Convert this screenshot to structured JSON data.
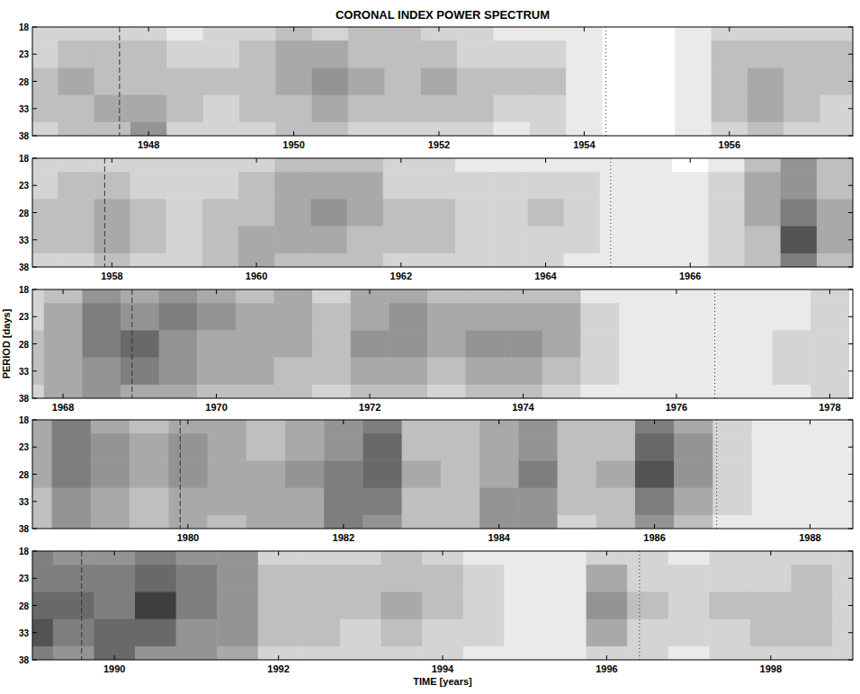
{
  "chart_data": [
    {
      "type": "heatmap",
      "title": "CORONAL INDEX POWER SPECTRUM",
      "xlim": [
        1946.4,
        1957.7
      ],
      "xticks": [
        1948,
        1950,
        1952,
        1954,
        1956
      ],
      "ylim": [
        38,
        18
      ],
      "yticks": [
        18,
        23,
        28,
        33,
        38
      ],
      "zlim": [
        0,
        10
      ],
      "dashed_lines": [
        1947.6
      ],
      "dotted_lines": [
        1954.3
      ],
      "periods": [
        18,
        23,
        28,
        33,
        38
      ],
      "times": [
        1946.5,
        1947,
        1947.5,
        1948,
        1948.5,
        1949,
        1949.5,
        1950,
        1950.5,
        1951,
        1951.5,
        1952,
        1952.5,
        1953,
        1953.5,
        1954,
        1954.5,
        1955,
        1955.5,
        1956,
        1956.5,
        1957,
        1957.5
      ],
      "cells": [
        [
          2,
          2,
          2,
          2,
          1,
          2,
          2,
          3,
          2,
          3,
          3,
          2,
          2,
          1,
          1,
          1,
          0,
          0,
          1,
          2,
          2,
          2,
          2
        ],
        [
          2,
          3,
          3,
          3,
          2,
          2,
          3,
          4,
          4,
          3,
          3,
          3,
          2,
          2,
          2,
          1,
          0,
          0,
          1,
          3,
          3,
          3,
          3
        ],
        [
          3,
          4,
          3,
          3,
          3,
          3,
          3,
          4,
          5,
          4,
          3,
          4,
          3,
          3,
          3,
          1,
          0,
          0,
          1,
          3,
          4,
          3,
          3
        ],
        [
          3,
          3,
          4,
          4,
          3,
          2,
          3,
          3,
          4,
          3,
          3,
          3,
          3,
          2,
          2,
          1,
          0,
          0,
          1,
          3,
          4,
          3,
          2
        ],
        [
          2,
          3,
          3,
          5,
          2,
          2,
          2,
          3,
          3,
          2,
          2,
          2,
          2,
          1,
          2,
          1,
          0,
          0,
          1,
          2,
          3,
          2,
          2
        ]
      ]
    },
    {
      "type": "heatmap",
      "xlim": [
        1956.9,
        1968.25
      ],
      "xticks": [
        1958,
        1960,
        1962,
        1964,
        1966
      ],
      "ylim": [
        38,
        18
      ],
      "yticks": [
        18,
        23,
        28,
        33,
        38
      ],
      "zlim": [
        0,
        10
      ],
      "dashed_lines": [
        1957.9
      ],
      "dotted_lines": [
        1964.9
      ],
      "periods": [
        18,
        23,
        28,
        33,
        38
      ],
      "times": [
        1957,
        1957.5,
        1958,
        1958.5,
        1959,
        1959.5,
        1960,
        1960.5,
        1961,
        1961.5,
        1962,
        1962.5,
        1963,
        1963.5,
        1964,
        1964.5,
        1965,
        1965.5,
        1966,
        1966.5,
        1967,
        1967.5,
        1968
      ],
      "cells": [
        [
          2,
          2,
          2,
          2,
          2,
          2,
          2,
          3,
          3,
          3,
          2,
          2,
          1,
          1,
          1,
          1,
          1,
          1,
          0,
          1,
          3,
          5,
          3
        ],
        [
          2,
          3,
          3,
          2,
          2,
          2,
          3,
          4,
          4,
          4,
          2,
          2,
          2,
          2,
          2,
          2,
          1,
          1,
          1,
          2,
          4,
          5,
          3
        ],
        [
          3,
          3,
          4,
          3,
          2,
          3,
          3,
          4,
          5,
          4,
          3,
          3,
          2,
          2,
          3,
          2,
          1,
          1,
          1,
          2,
          4,
          6,
          4
        ],
        [
          3,
          3,
          4,
          3,
          2,
          3,
          4,
          4,
          4,
          3,
          3,
          3,
          2,
          2,
          2,
          2,
          1,
          1,
          1,
          2,
          3,
          8,
          4
        ],
        [
          2,
          2,
          3,
          2,
          2,
          3,
          4,
          3,
          3,
          3,
          2,
          2,
          2,
          2,
          2,
          1,
          1,
          1,
          1,
          2,
          3,
          6,
          3
        ]
      ]
    },
    {
      "type": "heatmap",
      "y_label": "PERIOD [days]",
      "xlim": [
        1967.6,
        1978.3
      ],
      "xticks": [
        1968,
        1970,
        1972,
        1974,
        1976,
        1978
      ],
      "ylim": [
        38,
        18
      ],
      "yticks": [
        18,
        23,
        28,
        33,
        38
      ],
      "zlim": [
        0,
        10
      ],
      "dashed_lines": [
        1968.9
      ],
      "dotted_lines": [
        1976.5
      ],
      "periods": [
        18,
        23,
        28,
        33,
        38
      ],
      "times": [
        1967.5,
        1968,
        1968.5,
        1969,
        1969.5,
        1970,
        1970.5,
        1971,
        1971.5,
        1972,
        1972.5,
        1973,
        1973.5,
        1974,
        1974.5,
        1975,
        1975.5,
        1976,
        1976.5,
        1977,
        1977.5,
        1978
      ],
      "cells": [
        [
          2,
          3,
          5,
          4,
          5,
          4,
          3,
          4,
          2,
          4,
          4,
          3,
          3,
          3,
          3,
          1,
          1,
          1,
          1,
          1,
          1,
          2
        ],
        [
          2,
          4,
          6,
          5,
          6,
          5,
          4,
          4,
          3,
          4,
          5,
          4,
          4,
          4,
          4,
          2,
          1,
          1,
          1,
          1,
          1,
          2
        ],
        [
          3,
          4,
          6,
          7,
          5,
          4,
          4,
          4,
          3,
          5,
          5,
          4,
          5,
          5,
          4,
          2,
          1,
          1,
          1,
          1,
          2,
          2
        ],
        [
          3,
          4,
          5,
          6,
          5,
          4,
          4,
          3,
          3,
          4,
          4,
          3,
          4,
          4,
          3,
          2,
          1,
          1,
          1,
          1,
          2,
          2
        ],
        [
          2,
          4,
          5,
          4,
          4,
          3,
          3,
          3,
          2,
          3,
          3,
          2,
          3,
          3,
          2,
          1,
          1,
          1,
          1,
          1,
          1,
          2
        ]
      ]
    },
    {
      "type": "heatmap",
      "xlim": [
        1978.0,
        1988.55
      ],
      "xticks": [
        1980,
        1982,
        1984,
        1986,
        1988
      ],
      "ylim": [
        38,
        18
      ],
      "yticks": [
        18,
        23,
        28,
        33,
        38
      ],
      "zlim": [
        0,
        10
      ],
      "dashed_lines": [
        1979.9
      ],
      "dotted_lines": [
        1986.8
      ],
      "periods": [
        18,
        23,
        28,
        33,
        38
      ],
      "times": [
        1978,
        1978.5,
        1979,
        1979.5,
        1980,
        1980.5,
        1981,
        1981.5,
        1982,
        1982.5,
        1983,
        1983.5,
        1984,
        1984.5,
        1985,
        1985.5,
        1986,
        1986.5,
        1987,
        1987.5,
        1988,
        1988.5
      ],
      "cells": [
        [
          4,
          6,
          4,
          3,
          4,
          4,
          3,
          4,
          5,
          6,
          3,
          3,
          4,
          5,
          3,
          3,
          6,
          4,
          2,
          1,
          1,
          1
        ],
        [
          4,
          6,
          5,
          4,
          5,
          4,
          3,
          4,
          5,
          7,
          3,
          3,
          4,
          5,
          3,
          3,
          7,
          5,
          2,
          1,
          1,
          1
        ],
        [
          4,
          6,
          5,
          4,
          5,
          4,
          4,
          5,
          6,
          7,
          4,
          3,
          4,
          6,
          3,
          4,
          8,
          5,
          2,
          1,
          1,
          1
        ],
        [
          3,
          5,
          4,
          3,
          4,
          4,
          4,
          4,
          6,
          6,
          3,
          3,
          5,
          5,
          3,
          3,
          6,
          4,
          2,
          1,
          1,
          1
        ],
        [
          3,
          5,
          4,
          3,
          4,
          3,
          4,
          4,
          6,
          5,
          3,
          3,
          5,
          5,
          2,
          3,
          5,
          3,
          1,
          1,
          1,
          1
        ]
      ]
    },
    {
      "type": "heatmap",
      "x_label": "TIME [years]",
      "xlim": [
        1989.0,
        1999.0
      ],
      "xticks": [
        1990,
        1992,
        1994,
        1996,
        1998
      ],
      "ylim": [
        38,
        18
      ],
      "yticks": [
        18,
        23,
        28,
        33,
        38
      ],
      "zlim": [
        0,
        10
      ],
      "dashed_lines": [
        1989.6
      ],
      "dotted_lines": [
        1996.4
      ],
      "periods": [
        18,
        23,
        28,
        33,
        38
      ],
      "times": [
        1989,
        1989.5,
        1990,
        1990.5,
        1991,
        1991.5,
        1992,
        1992.5,
        1993,
        1993.5,
        1994,
        1994.5,
        1995,
        1995.5,
        1996,
        1996.5,
        1997,
        1997.5,
        1998,
        1998.5,
        1999
      ],
      "cells": [
        [
          6,
          5,
          5,
          6,
          5,
          5,
          2,
          2,
          2,
          3,
          2,
          1,
          1,
          1,
          2,
          2,
          1,
          2,
          2,
          2,
          2
        ],
        [
          6,
          6,
          6,
          7,
          6,
          5,
          3,
          3,
          3,
          3,
          3,
          2,
          1,
          1,
          4,
          2,
          2,
          2,
          2,
          3,
          2
        ],
        [
          7,
          7,
          6,
          9,
          6,
          5,
          3,
          3,
          3,
          4,
          3,
          2,
          1,
          1,
          5,
          3,
          2,
          3,
          3,
          3,
          2
        ],
        [
          8,
          6,
          7,
          7,
          5,
          5,
          3,
          3,
          2,
          3,
          2,
          2,
          1,
          1,
          4,
          2,
          2,
          2,
          3,
          3,
          2
        ],
        [
          6,
          5,
          7,
          5,
          5,
          4,
          2,
          2,
          2,
          2,
          2,
          1,
          1,
          1,
          2,
          2,
          1,
          2,
          2,
          2,
          2
        ]
      ]
    }
  ]
}
